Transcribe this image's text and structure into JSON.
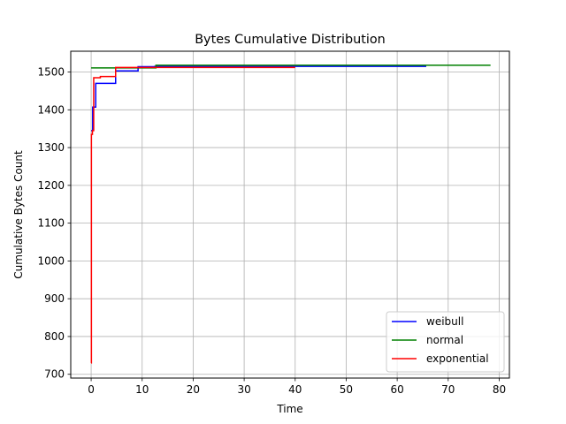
{
  "chart_data": {
    "type": "line",
    "title": "Bytes Cumulative Distribution",
    "xlabel": "Time",
    "ylabel": "Cumulative Bytes Count",
    "xlim": [
      -4,
      82
    ],
    "ylim": [
      690,
      1555
    ],
    "xticks": [
      0,
      10,
      20,
      30,
      40,
      50,
      60,
      70,
      80
    ],
    "yticks": [
      700,
      800,
      900,
      1000,
      1100,
      1200,
      1300,
      1400,
      1500
    ],
    "grid": true,
    "legend_position": "lower-right",
    "step": "post",
    "series": [
      {
        "name": "weibull",
        "color": "#0000ff",
        "points": [
          [
            0,
            1345
          ],
          [
            0.3,
            1407
          ],
          [
            0.9,
            1470
          ],
          [
            2.5,
            1470
          ],
          [
            4.8,
            1503
          ],
          [
            9.2,
            1514
          ],
          [
            12.5,
            1515
          ],
          [
            65.7,
            1515
          ]
        ]
      },
      {
        "name": "normal",
        "color": "#008000",
        "points": [
          [
            0,
            1511
          ],
          [
            12.7,
            1518
          ],
          [
            78.3,
            1518
          ]
        ]
      },
      {
        "name": "exponential",
        "color": "#ff0000",
        "points": [
          [
            0,
            730
          ],
          [
            0.05,
            1335
          ],
          [
            0.25,
            1345
          ],
          [
            0.5,
            1485
          ],
          [
            1.8,
            1488
          ],
          [
            4.8,
            1512
          ],
          [
            40,
            1512
          ]
        ]
      }
    ]
  }
}
